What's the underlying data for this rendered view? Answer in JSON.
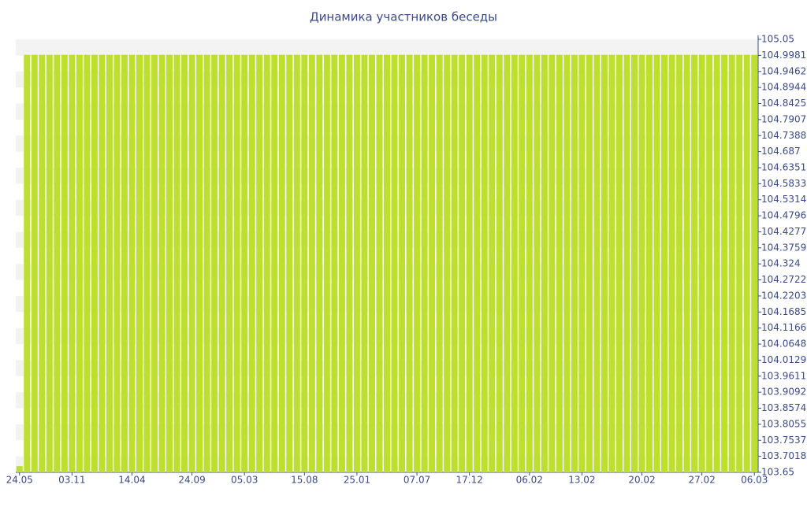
{
  "chart_data": {
    "type": "bar",
    "title": "Динамика участников беседы",
    "categories": [
      "24.05",
      null,
      null,
      null,
      null,
      null,
      null,
      "03.11",
      null,
      null,
      null,
      null,
      null,
      null,
      null,
      "14.04",
      null,
      null,
      null,
      null,
      null,
      null,
      null,
      "24.09",
      null,
      null,
      null,
      null,
      null,
      null,
      "05.03",
      null,
      null,
      null,
      null,
      null,
      null,
      null,
      "15.08",
      null,
      null,
      null,
      null,
      null,
      null,
      "25.01",
      null,
      null,
      null,
      null,
      null,
      null,
      null,
      "07.07",
      null,
      null,
      null,
      null,
      null,
      null,
      "17.12",
      null,
      null,
      null,
      null,
      null,
      null,
      null,
      "06.02",
      null,
      null,
      null,
      null,
      null,
      null,
      "13.02",
      null,
      null,
      null,
      null,
      null,
      null,
      null,
      "20.02",
      null,
      null,
      null,
      null,
      null,
      null,
      null,
      "27.02",
      null,
      null,
      null,
      null,
      null,
      null,
      "06.03"
    ],
    "values": [
      103.67,
      105,
      105,
      105,
      105,
      105,
      105,
      105,
      105,
      105,
      105,
      105,
      105,
      105,
      105,
      105,
      105,
      105,
      105,
      105,
      105,
      105,
      105,
      105,
      105,
      105,
      105,
      105,
      105,
      105,
      105,
      105,
      105,
      105,
      105,
      105,
      105,
      105,
      105,
      105,
      105,
      105,
      105,
      105,
      105,
      105,
      105,
      105,
      105,
      105,
      105,
      105,
      105,
      105,
      105,
      105,
      105,
      105,
      105,
      105,
      105,
      105,
      105,
      105,
      105,
      105,
      105,
      105,
      105,
      105,
      105,
      105,
      105,
      105,
      105,
      105,
      105,
      105,
      105,
      105,
      105,
      105,
      105,
      105,
      105,
      105,
      105,
      105,
      105,
      105,
      105,
      105,
      105,
      105,
      105,
      105,
      105,
      105,
      105
    ],
    "color": "#bfdf2f",
    "ylim": [
      103.65,
      105.05
    ],
    "yticks": [
      103.65,
      103.7018,
      103.7537,
      103.8055,
      103.8574,
      103.9092,
      103.9611,
      104.0129,
      104.0648,
      104.1166,
      104.1685,
      104.2203,
      104.2722,
      104.324,
      104.3759,
      104.4277,
      104.4796,
      104.5314,
      104.5833,
      104.6351,
      104.687,
      104.7388,
      104.7907,
      104.8425,
      104.8944,
      104.9462,
      104.9981,
      105.05
    ],
    "y_axis_side": "right",
    "bands": true
  }
}
